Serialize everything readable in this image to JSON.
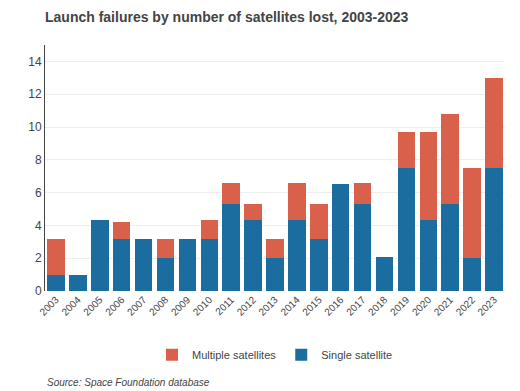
{
  "chart_data": {
    "type": "bar",
    "title": "Launch failures by number of satellites lost, 2003-2023",
    "categories": [
      "2003",
      "2004",
      "2005",
      "2006",
      "2007",
      "2008",
      "2009",
      "2010",
      "2011",
      "2012",
      "2013",
      "2014",
      "2015",
      "2016",
      "2017",
      "2018",
      "2019",
      "2020",
      "2021",
      "2022",
      "2023"
    ],
    "series": [
      {
        "name": "Single satellite",
        "color": "#1a6d9e",
        "values": [
          1,
          1,
          4.3,
          3.2,
          3.2,
          2.0,
          3.2,
          3.2,
          5.3,
          4.3,
          2.0,
          4.3,
          3.2,
          6.5,
          5.3,
          2.1,
          7.5,
          4.3,
          5.3,
          2.0,
          7.5
        ]
      },
      {
        "name": "Multiple satellites",
        "color": "#d9604a",
        "values": [
          2.2,
          0,
          0,
          1.0,
          0,
          1.2,
          0,
          1.1,
          1.3,
          1.0,
          1.2,
          2.3,
          2.1,
          0,
          1.3,
          0,
          2.2,
          5.4,
          5.5,
          5.5,
          5.5
        ]
      }
    ],
    "stacked": true,
    "ylim": [
      0,
      15
    ],
    "yticks": [
      0,
      2,
      4,
      6,
      8,
      10,
      12,
      14
    ],
    "grid": true,
    "legend": "bottom",
    "annotations": [
      "Source: Space Foundation database"
    ]
  }
}
